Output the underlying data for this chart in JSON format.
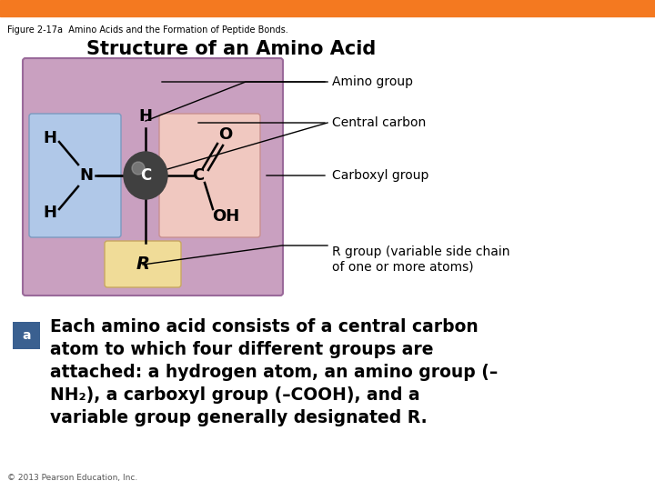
{
  "title_bar_color": "#F47920",
  "figure_label": "Figure 2-17a  Amino Acids and the Formation of Peptide Bonds.",
  "main_title": "Structure of an Amino Acid",
  "bg_color": "#FFFFFF",
  "outer_box_color": "#C9A0C0",
  "amino_box_color": "#B0C8E8",
  "carboxyl_box_color": "#F0C8C0",
  "r_box_color": "#F0DC98",
  "central_carbon_color": "#404040",
  "label_a_color": "#3A6090",
  "copyright": "© 2013 Pearson Education, Inc.",
  "body_text": "Each amino acid consists of a central carbon\natom to which four different groups are\nattached: a hydrogen atom, an amino group (–\nNH₂), a carboxyl group (–COOH), and a\nvariable group generally designated R."
}
